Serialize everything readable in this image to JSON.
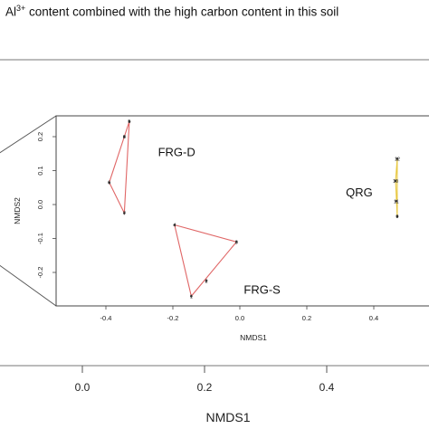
{
  "caption": {
    "prefix": "Al",
    "superscript": "3+",
    "rest": " content combined with the high carbon content in this soil"
  },
  "outer_axis": {
    "xlabel": "NMDS1",
    "ticks": [
      "0.0",
      "0.2",
      "0.4"
    ]
  },
  "chart_data": {
    "type": "scatter",
    "title": "",
    "xlabel": "NMDS1",
    "ylabel": "NMDS2",
    "xlim": [
      -0.55,
      0.55
    ],
    "ylim": [
      -0.3,
      0.26
    ],
    "xticks": [
      -0.4,
      -0.2,
      0.0,
      0.2,
      0.4
    ],
    "xtick_labels": [
      "-0.4",
      "-0.2",
      "0.0",
      "0.2",
      "0.4"
    ],
    "yticks": [
      -0.2,
      -0.1,
      0.0,
      0.1,
      0.2
    ],
    "ytick_labels": [
      "-0.2",
      "-0.1",
      "0.0",
      "0.1",
      "0.2"
    ],
    "grid": false,
    "groups": [
      {
        "label": "FRG-D",
        "color": "#e06666",
        "points": [
          {
            "id": "5",
            "x": -0.33,
            "y": 0.245
          },
          {
            "id": "8",
            "x": -0.345,
            "y": 0.2
          },
          {
            "id": "6",
            "x": -0.39,
            "y": 0.065
          },
          {
            "id": "7",
            "x": -0.345,
            "y": -0.025
          }
        ],
        "hull": [
          "5",
          "6",
          "7"
        ]
      },
      {
        "label": "FRG-S",
        "color": "#e06666",
        "points": [
          {
            "id": "4",
            "x": -0.195,
            "y": -0.06
          },
          {
            "id": "3",
            "x": -0.01,
            "y": -0.11
          },
          {
            "id": "2",
            "x": -0.1,
            "y": -0.225
          },
          {
            "id": "1",
            "x": -0.145,
            "y": -0.27
          }
        ],
        "hull": [
          "4",
          "3",
          "1"
        ]
      },
      {
        "label": "QRG",
        "color": "#e8c840",
        "points": [
          {
            "id": "12",
            "x": 0.47,
            "y": 0.135
          },
          {
            "id": "10",
            "x": 0.465,
            "y": 0.07
          },
          {
            "id": "11",
            "x": 0.467,
            "y": 0.01
          },
          {
            "id": "9",
            "x": 0.47,
            "y": -0.035
          }
        ],
        "hull": [
          "12",
          "10",
          "9"
        ]
      }
    ]
  }
}
